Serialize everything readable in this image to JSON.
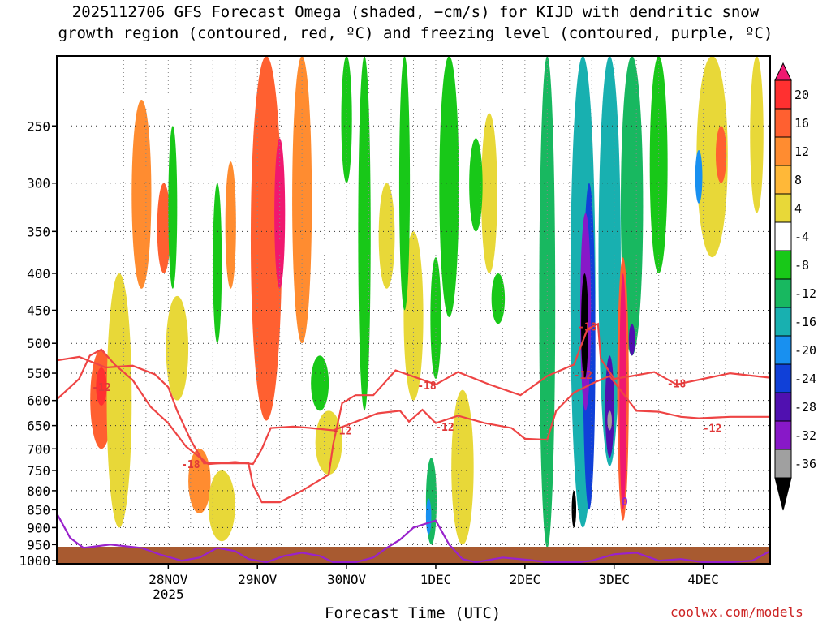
{
  "title": {
    "line1": "2025112706 GFS Forecast Omega (shaded, −cm/s) for KIJD with dendritic snow",
    "line2": "growth region (contoured, red, ºC) and freezing level (contoured, purple, ºC)"
  },
  "credit": "coolwx.com/models",
  "chart_data": {
    "type": "heatmap",
    "xlabel": "Forecast Time (UTC)",
    "ylabel": "",
    "x_ticks": [
      {
        "label": "28NOV",
        "sub": "2025",
        "day": 1.0
      },
      {
        "label": "29NOV",
        "sub": "",
        "day": 2.0
      },
      {
        "label": "30NOV",
        "sub": "",
        "day": 3.0
      },
      {
        "label": "1DEC",
        "sub": "",
        "day": 4.0
      },
      {
        "label": "2DEC",
        "sub": "",
        "day": 5.0
      },
      {
        "label": "3DEC",
        "sub": "",
        "day": 6.0
      },
      {
        "label": "4DEC",
        "sub": "",
        "day": 7.0
      }
    ],
    "xlim": [
      -0.25,
      7.75
    ],
    "y_ticks": [
      250,
      300,
      350,
      400,
      450,
      500,
      550,
      600,
      650,
      700,
      750,
      800,
      850,
      900,
      950,
      1000
    ],
    "ylim": [
      1010,
      200
    ],
    "y_scale": "log-pressure (hPa)",
    "grid": true,
    "colorbar": {
      "levels": [
        20,
        16,
        12,
        8,
        4,
        -4,
        -8,
        -12,
        -16,
        -20,
        -24,
        -28,
        -32,
        -36
      ],
      "colors": [
        "#f01870",
        "#ff3030",
        "#ff6030",
        "#ff8c30",
        "#ffb838",
        "#e8d838",
        "#ffffff",
        "#18c818",
        "#18b860",
        "#18b0b0",
        "#1890f0",
        "#1040d8",
        "#5010b0",
        "#8818c8",
        "#a0a0a0",
        "#000000"
      ]
    },
    "contour_labels": [
      {
        "text": "-12",
        "day": 0.25,
        "p": 575
      },
      {
        "text": "-18",
        "day": 1.25,
        "p": 735
      },
      {
        "text": "-12",
        "day": 2.95,
        "p": 660
      },
      {
        "text": "-18",
        "day": 3.9,
        "p": 572
      },
      {
        "text": "-12",
        "day": 4.1,
        "p": 652
      },
      {
        "text": "-18",
        "day": 5.7,
        "p": 474
      },
      {
        "text": "-12",
        "day": 5.65,
        "p": 553
      },
      {
        "text": "-18",
        "day": 6.7,
        "p": 568
      },
      {
        "text": "-12",
        "day": 7.1,
        "p": 655
      },
      {
        "text": "0",
        "day": 6.12,
        "p": 828
      }
    ],
    "dgz_lower_boundary_-12C": [
      [
        -0.25,
        598
      ],
      [
        0.0,
        560
      ],
      [
        0.12,
        520
      ],
      [
        0.25,
        510
      ],
      [
        0.4,
        535
      ],
      [
        0.6,
        562
      ],
      [
        0.8,
        612
      ],
      [
        1.0,
        645
      ],
      [
        1.2,
        695
      ],
      [
        1.45,
        735
      ],
      [
        1.75,
        730
      ],
      [
        1.95,
        735
      ],
      [
        2.05,
        700
      ],
      [
        2.15,
        655
      ],
      [
        2.4,
        652
      ],
      [
        2.6,
        655
      ],
      [
        2.85,
        660
      ],
      [
        3.35,
        625
      ],
      [
        3.6,
        620
      ],
      [
        3.7,
        642
      ],
      [
        3.85,
        618
      ],
      [
        4.0,
        645
      ],
      [
        4.25,
        630
      ],
      [
        4.55,
        645
      ],
      [
        4.85,
        655
      ],
      [
        5.0,
        678
      ],
      [
        5.25,
        680
      ],
      [
        5.35,
        620
      ],
      [
        5.55,
        585
      ],
      [
        5.8,
        565
      ],
      [
        5.95,
        555
      ],
      [
        6.25,
        620
      ],
      [
        6.5,
        622
      ],
      [
        6.75,
        632
      ],
      [
        6.95,
        635
      ],
      [
        7.3,
        632
      ],
      [
        7.75,
        632
      ]
    ],
    "dgz_upper_boundary_-18C": [
      [
        -0.25,
        528
      ],
      [
        0.0,
        522
      ],
      [
        0.3,
        540
      ],
      [
        0.6,
        537
      ],
      [
        0.85,
        552
      ],
      [
        1.0,
        575
      ],
      [
        1.1,
        620
      ],
      [
        1.25,
        680
      ],
      [
        1.4,
        733
      ],
      [
        1.7,
        733
      ],
      [
        1.8,
        733
      ],
      [
        1.9,
        733
      ],
      [
        1.95,
        785
      ],
      [
        2.05,
        830
      ],
      [
        2.25,
        830
      ],
      [
        2.5,
        800
      ],
      [
        2.8,
        760
      ],
      [
        2.85,
        690
      ],
      [
        2.95,
        605
      ],
      [
        3.1,
        590
      ],
      [
        3.3,
        590
      ],
      [
        3.55,
        545
      ],
      [
        4.0,
        570
      ],
      [
        4.25,
        548
      ],
      [
        4.6,
        570
      ],
      [
        4.95,
        590
      ],
      [
        5.25,
        555
      ],
      [
        5.55,
        535
      ],
      [
        5.7,
        478
      ],
      [
        5.82,
        470
      ],
      [
        5.85,
        525
      ],
      [
        6.0,
        560
      ],
      [
        6.2,
        555
      ],
      [
        6.45,
        548
      ],
      [
        6.7,
        570
      ],
      [
        7.0,
        560
      ],
      [
        7.3,
        550
      ],
      [
        7.75,
        558
      ]
    ],
    "freezing_level_0C": [
      [
        -0.25,
        860
      ],
      [
        -0.1,
        930
      ],
      [
        0.05,
        960
      ],
      [
        0.35,
        950
      ],
      [
        0.7,
        960
      ],
      [
        0.9,
        980
      ],
      [
        1.15,
        1000
      ],
      [
        1.35,
        990
      ],
      [
        1.55,
        960
      ],
      [
        1.75,
        970
      ],
      [
        1.9,
        995
      ],
      [
        2.1,
        1005
      ],
      [
        2.3,
        985
      ],
      [
        2.5,
        975
      ],
      [
        2.7,
        985
      ],
      [
        2.85,
        1005
      ],
      [
        3.1,
        1005
      ],
      [
        3.3,
        990
      ],
      [
        3.45,
        960
      ],
      [
        3.6,
        935
      ],
      [
        3.75,
        900
      ],
      [
        4.0,
        880
      ],
      [
        4.15,
        950
      ],
      [
        4.3,
        995
      ],
      [
        4.45,
        1005
      ],
      [
        4.75,
        990
      ],
      [
        5.05,
        998
      ],
      [
        5.25,
        1005
      ],
      [
        5.6,
        1005
      ],
      [
        5.75,
        1000
      ],
      [
        6.0,
        980
      ],
      [
        6.25,
        975
      ],
      [
        6.5,
        1000
      ],
      [
        6.75,
        995
      ],
      [
        7.0,
        1005
      ],
      [
        7.3,
        1005
      ],
      [
        7.55,
        1000
      ],
      [
        7.75,
        970
      ]
    ],
    "omega_cells": [
      {
        "day": 0.25,
        "p1": 510,
        "p2": 700,
        "w": 0.25,
        "v": 12
      },
      {
        "day": 0.25,
        "p1": 540,
        "p2": 610,
        "w": 0.12,
        "v": 16
      },
      {
        "day": 0.45,
        "p1": 400,
        "p2": 900,
        "w": 0.28,
        "v": 6
      },
      {
        "day": 0.7,
        "p1": 230,
        "p2": 420,
        "w": 0.22,
        "v": 8
      },
      {
        "day": 0.95,
        "p1": 300,
        "p2": 400,
        "w": 0.15,
        "v": 12
      },
      {
        "day": 1.1,
        "p1": 430,
        "p2": 600,
        "w": 0.25,
        "v": 6
      },
      {
        "day": 1.35,
        "p1": 700,
        "p2": 860,
        "w": 0.25,
        "v": 10
      },
      {
        "day": 1.6,
        "p1": 750,
        "p2": 940,
        "w": 0.3,
        "v": 6
      },
      {
        "day": 1.7,
        "p1": 280,
        "p2": 420,
        "w": 0.12,
        "v": 8
      },
      {
        "day": 2.05,
        "p1": 350,
        "p2": 600,
        "w": 0.15,
        "v": 5
      },
      {
        "day": 2.1,
        "p1": 200,
        "p2": 640,
        "w": 0.35,
        "v": 12
      },
      {
        "day": 2.25,
        "p1": 260,
        "p2": 420,
        "w": 0.12,
        "v": 20
      },
      {
        "day": 2.5,
        "p1": 200,
        "p2": 500,
        "w": 0.22,
        "v": 8
      },
      {
        "day": 2.8,
        "p1": 620,
        "p2": 760,
        "w": 0.3,
        "v": 6
      },
      {
        "day": 3.45,
        "p1": 300,
        "p2": 420,
        "w": 0.18,
        "v": 6
      },
      {
        "day": 3.75,
        "p1": 350,
        "p2": 600,
        "w": 0.22,
        "v": 6
      },
      {
        "day": 4.3,
        "p1": 580,
        "p2": 950,
        "w": 0.25,
        "v": 5
      },
      {
        "day": 4.6,
        "p1": 240,
        "p2": 400,
        "w": 0.18,
        "v": 6
      },
      {
        "day": 7.1,
        "p1": 200,
        "p2": 380,
        "w": 0.35,
        "v": 6
      },
      {
        "day": 7.2,
        "p1": 250,
        "p2": 300,
        "w": 0.12,
        "v": 12
      },
      {
        "day": 7.6,
        "p1": 200,
        "p2": 330,
        "w": 0.15,
        "v": 6
      },
      {
        "day": 3.2,
        "p1": 200,
        "p2": 620,
        "w": 0.14,
        "v": -6
      },
      {
        "day": 3.0,
        "p1": 200,
        "p2": 300,
        "w": 0.12,
        "v": -6
      },
      {
        "day": 3.65,
        "p1": 200,
        "p2": 450,
        "w": 0.12,
        "v": -6
      },
      {
        "day": 4.0,
        "p1": 380,
        "p2": 560,
        "w": 0.12,
        "v": -6
      },
      {
        "day": 4.15,
        "p1": 200,
        "p2": 460,
        "w": 0.22,
        "v": -6
      },
      {
        "day": 4.45,
        "p1": 260,
        "p2": 350,
        "w": 0.15,
        "v": -6
      },
      {
        "day": 4.7,
        "p1": 400,
        "p2": 470,
        "w": 0.15,
        "v": -6
      },
      {
        "day": 1.05,
        "p1": 250,
        "p2": 420,
        "w": 0.1,
        "v": -6
      },
      {
        "day": 1.55,
        "p1": 300,
        "p2": 500,
        "w": 0.1,
        "v": -6
      },
      {
        "day": 2.7,
        "p1": 520,
        "p2": 620,
        "w": 0.2,
        "v": -6
      },
      {
        "day": 3.95,
        "p1": 720,
        "p2": 950,
        "w": 0.12,
        "v": -10
      },
      {
        "day": 3.92,
        "p1": 820,
        "p2": 920,
        "w": 0.06,
        "v": -16
      },
      {
        "day": 5.25,
        "p1": 200,
        "p2": 960,
        "w": 0.18,
        "v": -8
      },
      {
        "day": 5.65,
        "p1": 200,
        "p2": 900,
        "w": 0.28,
        "v": -14
      },
      {
        "day": 5.72,
        "p1": 300,
        "p2": 850,
        "w": 0.14,
        "v": -20
      },
      {
        "day": 5.68,
        "p1": 330,
        "p2": 620,
        "w": 0.12,
        "v": -28
      },
      {
        "day": 5.67,
        "p1": 400,
        "p2": 560,
        "w": 0.08,
        "v": -36
      },
      {
        "day": 5.55,
        "p1": 800,
        "p2": 900,
        "w": 0.05,
        "v": -36
      },
      {
        "day": 5.95,
        "p1": 200,
        "p2": 740,
        "w": 0.25,
        "v": -14
      },
      {
        "day": 5.95,
        "p1": 520,
        "p2": 720,
        "w": 0.1,
        "v": -24
      },
      {
        "day": 5.95,
        "p1": 620,
        "p2": 660,
        "w": 0.05,
        "v": -32
      },
      {
        "day": 6.2,
        "p1": 200,
        "p2": 520,
        "w": 0.25,
        "v": -10
      },
      {
        "day": 6.2,
        "p1": 470,
        "p2": 520,
        "w": 0.07,
        "v": -24
      },
      {
        "day": 6.5,
        "p1": 200,
        "p2": 400,
        "w": 0.2,
        "v": -6
      },
      {
        "day": 6.95,
        "p1": 270,
        "p2": 320,
        "w": 0.08,
        "v": -16
      },
      {
        "day": 6.1,
        "p1": 380,
        "p2": 880,
        "w": 0.13,
        "v": 14
      },
      {
        "day": 6.1,
        "p1": 400,
        "p2": 850,
        "w": 0.08,
        "v": 20
      }
    ]
  }
}
